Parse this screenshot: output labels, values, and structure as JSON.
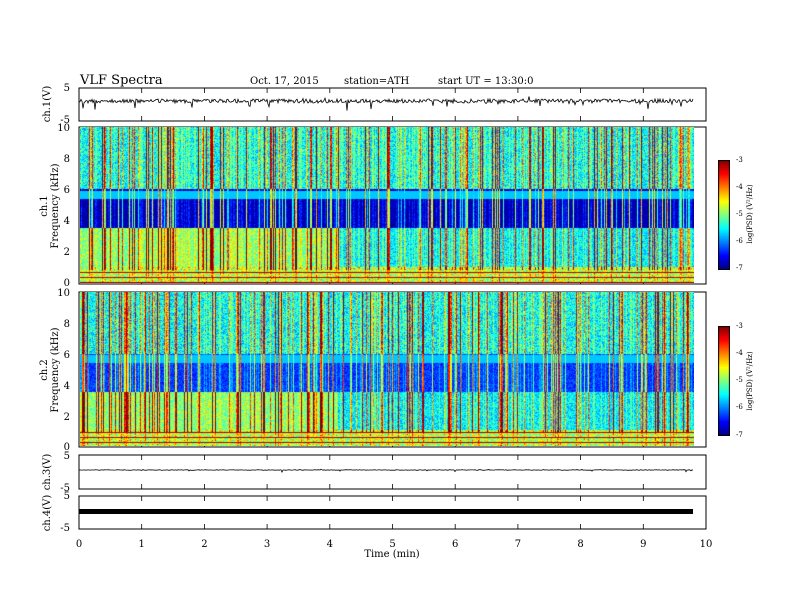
{
  "header": {
    "title": "VLF Spectra",
    "date": "Oct. 17, 2015",
    "station": "station=ATH",
    "start": "start UT =  13:30:0"
  },
  "chart_data": [
    {
      "type": "line",
      "ylabel": "ch.1(V)",
      "ylim": [
        -5,
        5
      ],
      "y_ticks": [
        "5",
        "-5"
      ],
      "xlim": [
        0,
        10
      ],
      "x_end": 9.8,
      "baseline": 0,
      "color": "#000000"
    },
    {
      "type": "heatmap",
      "ylabel": "Frequency (kHz)",
      "channel": "ch.1",
      "ylim": [
        0,
        10
      ],
      "y_ticks": [
        "10",
        "8",
        "6",
        "4",
        "2",
        "0"
      ],
      "xlim": [
        0,
        10
      ],
      "x_end": 9.8,
      "colorbar": {
        "label": "log(PSD) (V²/Hz)",
        "range": [
          -7,
          -3
        ],
        "ticks": [
          "-3",
          "-4",
          "-5",
          "-6",
          "-7"
        ]
      }
    },
    {
      "type": "heatmap",
      "ylabel": "Frequency (kHz)",
      "channel": "ch.2",
      "ylim": [
        0,
        10
      ],
      "y_ticks": [
        "10",
        "8",
        "6",
        "4",
        "2",
        "0"
      ],
      "xlim": [
        0,
        10
      ],
      "x_end": 9.8,
      "colorbar": {
        "label": "log(PSD) (V²/Hz)",
        "range": [
          -7,
          -3
        ],
        "ticks": [
          "-3",
          "-4",
          "-5",
          "-6",
          "-7"
        ]
      }
    },
    {
      "type": "line",
      "ylabel": "ch.3(V)",
      "ylim": [
        -5,
        5
      ],
      "y_ticks": [
        "5",
        "-5"
      ],
      "xlim": [
        0,
        10
      ],
      "x_end": 9.8,
      "baseline": 0,
      "color": "#000000"
    },
    {
      "type": "line",
      "ylabel": "ch.4(V)",
      "ylim": [
        -5,
        5
      ],
      "y_ticks": [
        "5",
        "-5"
      ],
      "xlim": [
        0,
        10
      ],
      "x_end": 9.8,
      "baseline": 0,
      "color": "#000000"
    }
  ],
  "x_axis": {
    "label": "Time (min)",
    "ticks": [
      "0",
      "1",
      "2",
      "3",
      "4",
      "5",
      "6",
      "7",
      "8",
      "9",
      "10"
    ]
  }
}
